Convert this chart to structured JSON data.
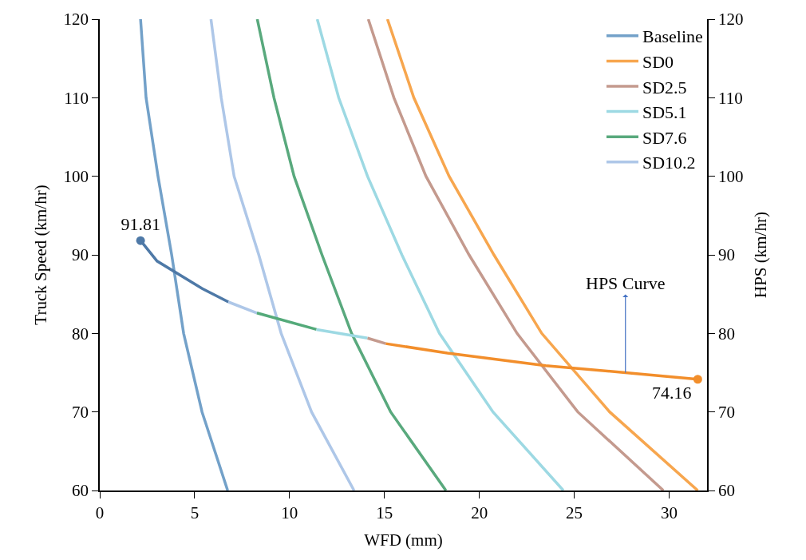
{
  "chart_data": {
    "type": "line",
    "xlabel": "WFD (mm)",
    "ylabel": "Truck Speed (km/hr)",
    "y2label": "HPS (km/hr)",
    "xlim": [
      0,
      32
    ],
    "xticks": [
      0,
      5,
      10,
      15,
      20,
      25,
      30
    ],
    "ylim": [
      60,
      120
    ],
    "yticks": [
      60,
      70,
      80,
      90,
      100,
      110,
      120
    ],
    "y2lim": [
      60,
      120
    ],
    "y2ticks": [
      60,
      70,
      80,
      90,
      100,
      110,
      120
    ],
    "legend": "top right",
    "line_style": "solid",
    "annotations": [
      {
        "text": "HPS Curve",
        "x": 27.7,
        "y": 75.0
      }
    ],
    "series": [
      {
        "name": "Baseline",
        "color": "#73a1c9",
        "x": [
          2.15,
          2.44,
          3.07,
          3.79,
          4.42,
          5.39,
          6.74
        ],
        "values": [
          120,
          110,
          100,
          90,
          80,
          70,
          60
        ]
      },
      {
        "name": "SD0",
        "color": "#f7a64e",
        "x": [
          15.16,
          16.55,
          18.41,
          20.77,
          23.29,
          26.87,
          31.51
        ],
        "values": [
          120,
          110,
          100,
          90,
          80,
          70,
          60
        ]
      },
      {
        "name": "SD2.5",
        "color": "#c49a8e",
        "x": [
          14.15,
          15.5,
          17.19,
          19.46,
          21.99,
          25.19,
          29.7
        ],
        "values": [
          120,
          110,
          100,
          90,
          80,
          70,
          60
        ]
      },
      {
        "name": "SD5.1",
        "color": "#9dd9e3",
        "x": [
          11.46,
          12.59,
          14.11,
          15.92,
          17.9,
          20.72,
          24.43
        ],
        "values": [
          120,
          110,
          100,
          90,
          80,
          70,
          60
        ]
      },
      {
        "name": "SD7.6",
        "color": "#59a97d",
        "x": [
          8.3,
          9.18,
          10.24,
          11.71,
          13.27,
          15.33,
          18.24
        ],
        "values": [
          120,
          110,
          100,
          90,
          80,
          70,
          60
        ]
      },
      {
        "name": "SD10.2",
        "color": "#aec7e8",
        "x": [
          5.86,
          6.4,
          7.08,
          8.38,
          9.56,
          11.16,
          13.4
        ],
        "values": [
          120,
          110,
          100,
          90,
          80,
          70,
          60
        ]
      },
      {
        "color": "#4e79a7",
        "x": [
          2.15,
          3.02,
          5.4,
          6.78
        ],
        "values": [
          91.81,
          89.2,
          85.7,
          84.0
        ]
      },
      {
        "color": "#aec7e8",
        "x": [
          6.78,
          8.28
        ],
        "values": [
          84.0,
          82.6
        ]
      },
      {
        "color": "#54aa7a",
        "x": [
          8.28,
          11.42
        ],
        "values": [
          82.6,
          80.5
        ]
      },
      {
        "color": "#9dd9e3",
        "x": [
          11.42,
          14.11
        ],
        "values": [
          80.5,
          79.4
        ]
      },
      {
        "color": "#c49a8e",
        "x": [
          14.11,
          15.07
        ],
        "values": [
          79.4,
          78.7
        ]
      },
      {
        "color": "#f28e2b",
        "x": [
          15.07,
          18.32,
          23.5,
          27.7,
          31.51
        ],
        "values": [
          78.7,
          77.5,
          75.9,
          75.0,
          74.16
        ]
      },
      {
        "type": "scatter",
        "colors": [
          "#4e79a7",
          "#f28e2b"
        ],
        "x": [
          2.15,
          31.51
        ],
        "values": [
          91.81,
          74.16
        ],
        "value_labels": [
          "91.81",
          "74.16"
        ]
      }
    ]
  }
}
